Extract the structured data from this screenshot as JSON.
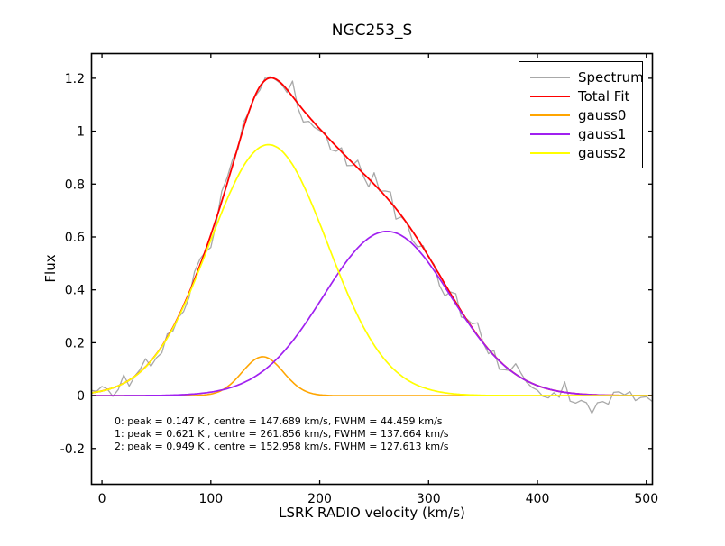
{
  "figure": {
    "background": "#ffffff",
    "axes_color": "#000000"
  },
  "chart_data": {
    "type": "line",
    "title": "NGC253_S",
    "xlabel": "LSRK RADIO velocity (km/s)",
    "ylabel": "Flux",
    "xlim": [
      -10,
      506
    ],
    "ylim": [
      -0.337,
      1.295
    ],
    "xticks": {
      "values": [
        0,
        100,
        200,
        300,
        400,
        500
      ],
      "labels": [
        "0",
        "100",
        "200",
        "300",
        "400",
        "500"
      ]
    },
    "yticks": {
      "values": [
        -0.2,
        0,
        0.2,
        0.4,
        0.6,
        0.8,
        1.0,
        1.2
      ],
      "labels": [
        "-0.2",
        "0",
        "0.2",
        "0.4",
        "0.6",
        "0.8",
        "1",
        "1.2"
      ]
    },
    "grid": false,
    "legend": {
      "position": "upper right"
    },
    "series": [
      {
        "name": "Spectrum",
        "color": "#a8a8a8",
        "role": "spectrum",
        "channel_width_kms": 5,
        "noise_sigma": 0.034,
        "noise_seed": 11,
        "linewidth": 1.3
      },
      {
        "name": "Total Fit",
        "color": "#ff0000",
        "role": "total_fit",
        "linewidth": 1.8
      },
      {
        "name": "gauss0",
        "color": "#ffa500",
        "role": "gaussian",
        "peak_K": 0.147,
        "centre_kms": 147.689,
        "fwhm_kms": 44.459,
        "linewidth": 1.6
      },
      {
        "name": "gauss1",
        "color": "#a020f0",
        "role": "gaussian",
        "peak_K": 0.621,
        "centre_kms": 261.856,
        "fwhm_kms": 137.664,
        "linewidth": 1.7
      },
      {
        "name": "gauss2",
        "color": "#ffff00",
        "role": "gaussian",
        "peak_K": 0.949,
        "centre_kms": 152.958,
        "fwhm_kms": 127.613,
        "linewidth": 1.7
      }
    ],
    "annotation_lines": [
      "0: peak = 0.147 K , centre = 147.689 km/s, FWHM = 44.459 km/s",
      "1: peak = 0.621 K , centre = 261.856 km/s, FWHM = 137.664 km/s",
      "2: peak = 0.949 K , centre = 152.958 km/s, FWHM = 127.613 km/s"
    ]
  }
}
